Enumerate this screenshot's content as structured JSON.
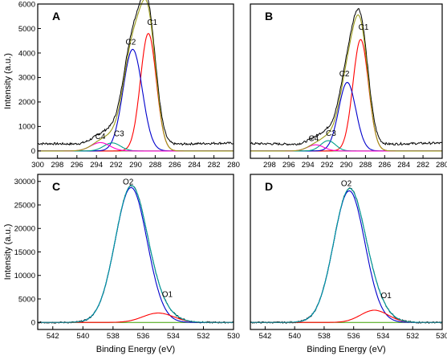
{
  "colors": {
    "raw": "#000000",
    "envelope": "#9b9b1a",
    "c1_o1": "#ff0000",
    "c2_o2": "#0000cc",
    "c3": "#00a08a",
    "c4": "#ff00cc",
    "fit_o": "#00a0a0"
  },
  "chart_data": [
    {
      "panel": "A",
      "type": "line",
      "ylabel": "Intensity (a.u.)",
      "xlabel": "",
      "xlim": [
        300,
        280
      ],
      "ylim": [
        -300,
        6000
      ],
      "x_ticks": [
        300,
        298,
        296,
        294,
        292,
        290,
        288,
        286,
        284,
        282,
        280
      ],
      "y_ticks": [
        0,
        1000,
        2000,
        3000,
        4000,
        5000,
        6000
      ],
      "baseline": 0,
      "raw_noise": 45,
      "series": [
        {
          "name": "C1",
          "center": 288.7,
          "height": 4800,
          "fwhm": 1.9
        },
        {
          "name": "C2",
          "center": 290.3,
          "height": 4150,
          "fwhm": 2.3
        },
        {
          "name": "C3",
          "center": 292.4,
          "height": 330,
          "fwhm": 2.0
        },
        {
          "name": "C4",
          "center": 293.6,
          "height": 340,
          "fwhm": 2.3
        }
      ],
      "annotations": [
        {
          "text": "C1",
          "x": 288.3,
          "y": 5150
        },
        {
          "text": "C2",
          "x": 290.5,
          "y": 4350
        },
        {
          "text": "C3",
          "x": 291.7,
          "y": 600
        },
        {
          "text": "C4",
          "x": 293.6,
          "y": 480
        }
      ]
    },
    {
      "panel": "B",
      "type": "line",
      "ylabel": "",
      "xlabel": "",
      "xlim": [
        300,
        280
      ],
      "ylim": [
        -300,
        6000
      ],
      "x_ticks": [
        298,
        296,
        294,
        292,
        290,
        288,
        286,
        284,
        282,
        280
      ],
      "y_ticks": [],
      "baseline": 0,
      "raw_noise": 45,
      "series": [
        {
          "name": "C1",
          "center": 288.5,
          "height": 4550,
          "fwhm": 1.9
        },
        {
          "name": "C2",
          "center": 289.9,
          "height": 2800,
          "fwhm": 2.1
        },
        {
          "name": "C3",
          "center": 291.9,
          "height": 420,
          "fwhm": 1.8
        },
        {
          "name": "C4",
          "center": 293.2,
          "height": 250,
          "fwhm": 2.0
        }
      ],
      "annotations": [
        {
          "text": "C1",
          "x": 288.2,
          "y": 4950
        },
        {
          "text": "C2",
          "x": 290.2,
          "y": 3050
        },
        {
          "text": "C3",
          "x": 291.6,
          "y": 620
        },
        {
          "text": "C4",
          "x": 293.4,
          "y": 400
        }
      ]
    },
    {
      "panel": "C",
      "type": "line",
      "ylabel": "Intensity (a.u.)",
      "xlabel": "Binding Energy (eV)",
      "xlim": [
        543,
        530
      ],
      "ylim": [
        -1500,
        31500
      ],
      "x_ticks": [
        542,
        540,
        538,
        536,
        534,
        532,
        530
      ],
      "y_ticks": [
        0,
        5000,
        10000,
        15000,
        20000,
        25000,
        30000
      ],
      "baseline": 0,
      "raw_noise": 160,
      "series": [
        {
          "name": "O2",
          "center": 536.8,
          "height": 28700,
          "fwhm": 2.5
        },
        {
          "name": "O1",
          "center": 535.0,
          "height": 2000,
          "fwhm": 2.4
        }
      ],
      "annotations": [
        {
          "text": "O2",
          "x": 537.0,
          "y": 29400
        },
        {
          "text": "O1",
          "x": 534.4,
          "y": 5400
        }
      ]
    },
    {
      "panel": "D",
      "type": "line",
      "ylabel": "",
      "xlabel": "Binding Energy (eV)",
      "xlim": [
        543,
        530
      ],
      "ylim": [
        -1500,
        31500
      ],
      "x_ticks": [
        542,
        540,
        538,
        536,
        534,
        532,
        530
      ],
      "y_ticks": [],
      "baseline": 0,
      "raw_noise": 160,
      "series": [
        {
          "name": "O2",
          "center": 536.3,
          "height": 28000,
          "fwhm": 2.5
        },
        {
          "name": "O1",
          "center": 534.6,
          "height": 2600,
          "fwhm": 2.2
        }
      ],
      "annotations": [
        {
          "text": "O2",
          "x": 536.5,
          "y": 29000
        },
        {
          "text": "O1",
          "x": 533.8,
          "y": 5200
        }
      ]
    }
  ]
}
